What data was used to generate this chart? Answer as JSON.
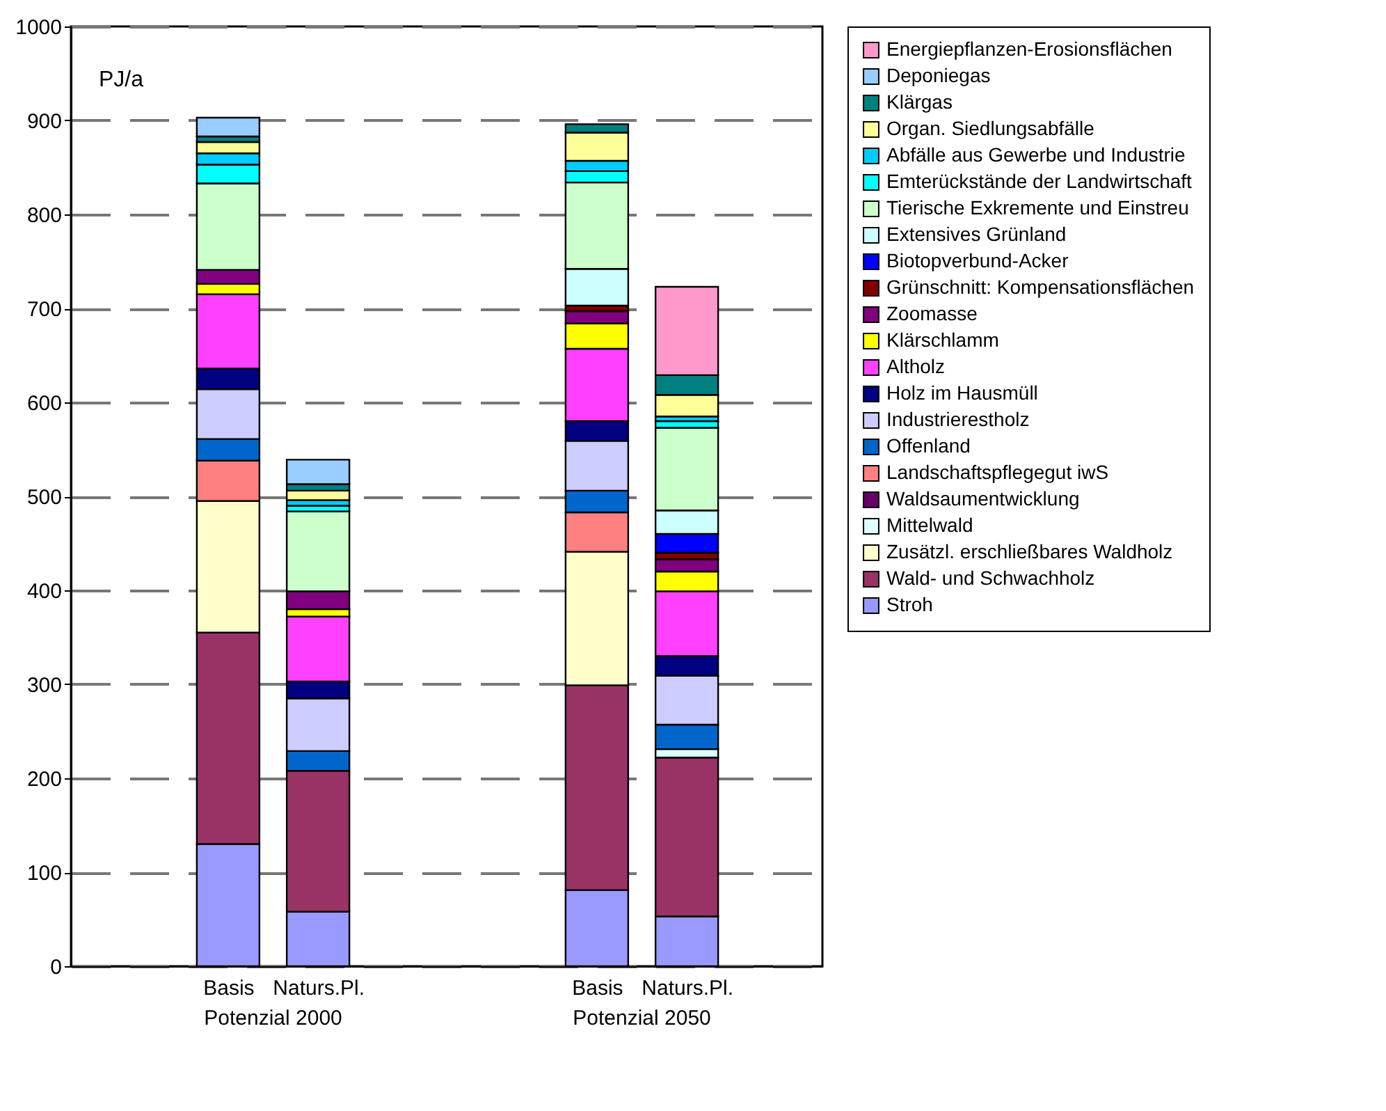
{
  "chart_data": {
    "type": "bar",
    "stacked": true,
    "ylabel": "PJ/a",
    "categories": [
      "Basis",
      "Naturs.Pl.",
      "Basis",
      "Naturs.Pl."
    ],
    "annotations": [
      "Potenzial 2000",
      "Potenzial 2050"
    ],
    "ylim": [
      0,
      1000
    ],
    "yticks": [
      0,
      100,
      200,
      300,
      400,
      500,
      600,
      700,
      800,
      900,
      1000
    ],
    "grid": "y",
    "legend": "right",
    "series": [
      {
        "name": "Stroh",
        "color": "#9999ff",
        "values": [
          130,
          58,
          81,
          53
        ]
      },
      {
        "name": "Wald- und Schwachholz",
        "color": "#993366",
        "values": [
          225,
          150,
          218,
          169
        ]
      },
      {
        "name": "Zusätzl. erschließbares Waldholz",
        "color": "#ffffcc",
        "values": [
          140,
          null,
          142,
          null
        ]
      },
      {
        "name": "Mittelwald",
        "color": "#ddffff",
        "values": [
          null,
          null,
          null,
          9
        ]
      },
      {
        "name": "Waldsaumentwicklung",
        "color": "#660066",
        "values": [
          null,
          null,
          null,
          null
        ]
      },
      {
        "name": "Landschaftspflegegut iwS",
        "color": "#ff8080",
        "values": [
          43,
          null,
          42,
          null
        ]
      },
      {
        "name": "Offenland",
        "color": "#0066cc",
        "values": [
          23,
          21,
          23,
          26
        ]
      },
      {
        "name": "Industrierestholz",
        "color": "#ccccff",
        "values": [
          53,
          56,
          53,
          52
        ]
      },
      {
        "name": "Holz im Hausmüll",
        "color": "#000080",
        "values": [
          22,
          18,
          21,
          21
        ]
      },
      {
        "name": "Altholz",
        "color": "#ff40ff",
        "values": [
          79,
          69,
          77,
          69
        ]
      },
      {
        "name": "Klärschlamm",
        "color": "#ffff00",
        "values": [
          11,
          8,
          27,
          21
        ]
      },
      {
        "name": "Zoomasse",
        "color": "#800080",
        "values": [
          15,
          19,
          13,
          13
        ]
      },
      {
        "name": "Grünschnitt: Kompensationsflächen",
        "color": "#800000",
        "values": [
          null,
          null,
          6,
          7
        ]
      },
      {
        "name": "Biotopverbund-Acker",
        "color": "#0000ff",
        "values": [
          null,
          null,
          null,
          20
        ]
      },
      {
        "name": "Extensives Grünland",
        "color": "#ccffff",
        "values": [
          null,
          null,
          39,
          25
        ]
      },
      {
        "name": "Tierische Exkremente und Einstreu",
        "color": "#ccffcc",
        "values": [
          92,
          85,
          92,
          88
        ]
      },
      {
        "name": "Emterückstände der Landwirtschaft",
        "color": "#00ffff",
        "values": [
          20,
          6,
          12,
          7
        ]
      },
      {
        "name": "Abfälle aus Gewerbe und Industrie",
        "color": "#00ccff",
        "values": [
          12,
          6,
          11,
          5
        ]
      },
      {
        "name": "Organ. Siedlungsabfälle",
        "color": "#ffff99",
        "values": [
          12,
          10,
          30,
          23
        ]
      },
      {
        "name": "Klärgas",
        "color": "#008080",
        "values": [
          6,
          7,
          9,
          21
        ]
      },
      {
        "name": "Deponiegas",
        "color": "#99ccff",
        "values": [
          20,
          26,
          null,
          null
        ]
      },
      {
        "name": "Energiepflanzen-Erosionsflächen",
        "color": "#ff99cc",
        "values": [
          null,
          null,
          null,
          94
        ]
      }
    ]
  }
}
